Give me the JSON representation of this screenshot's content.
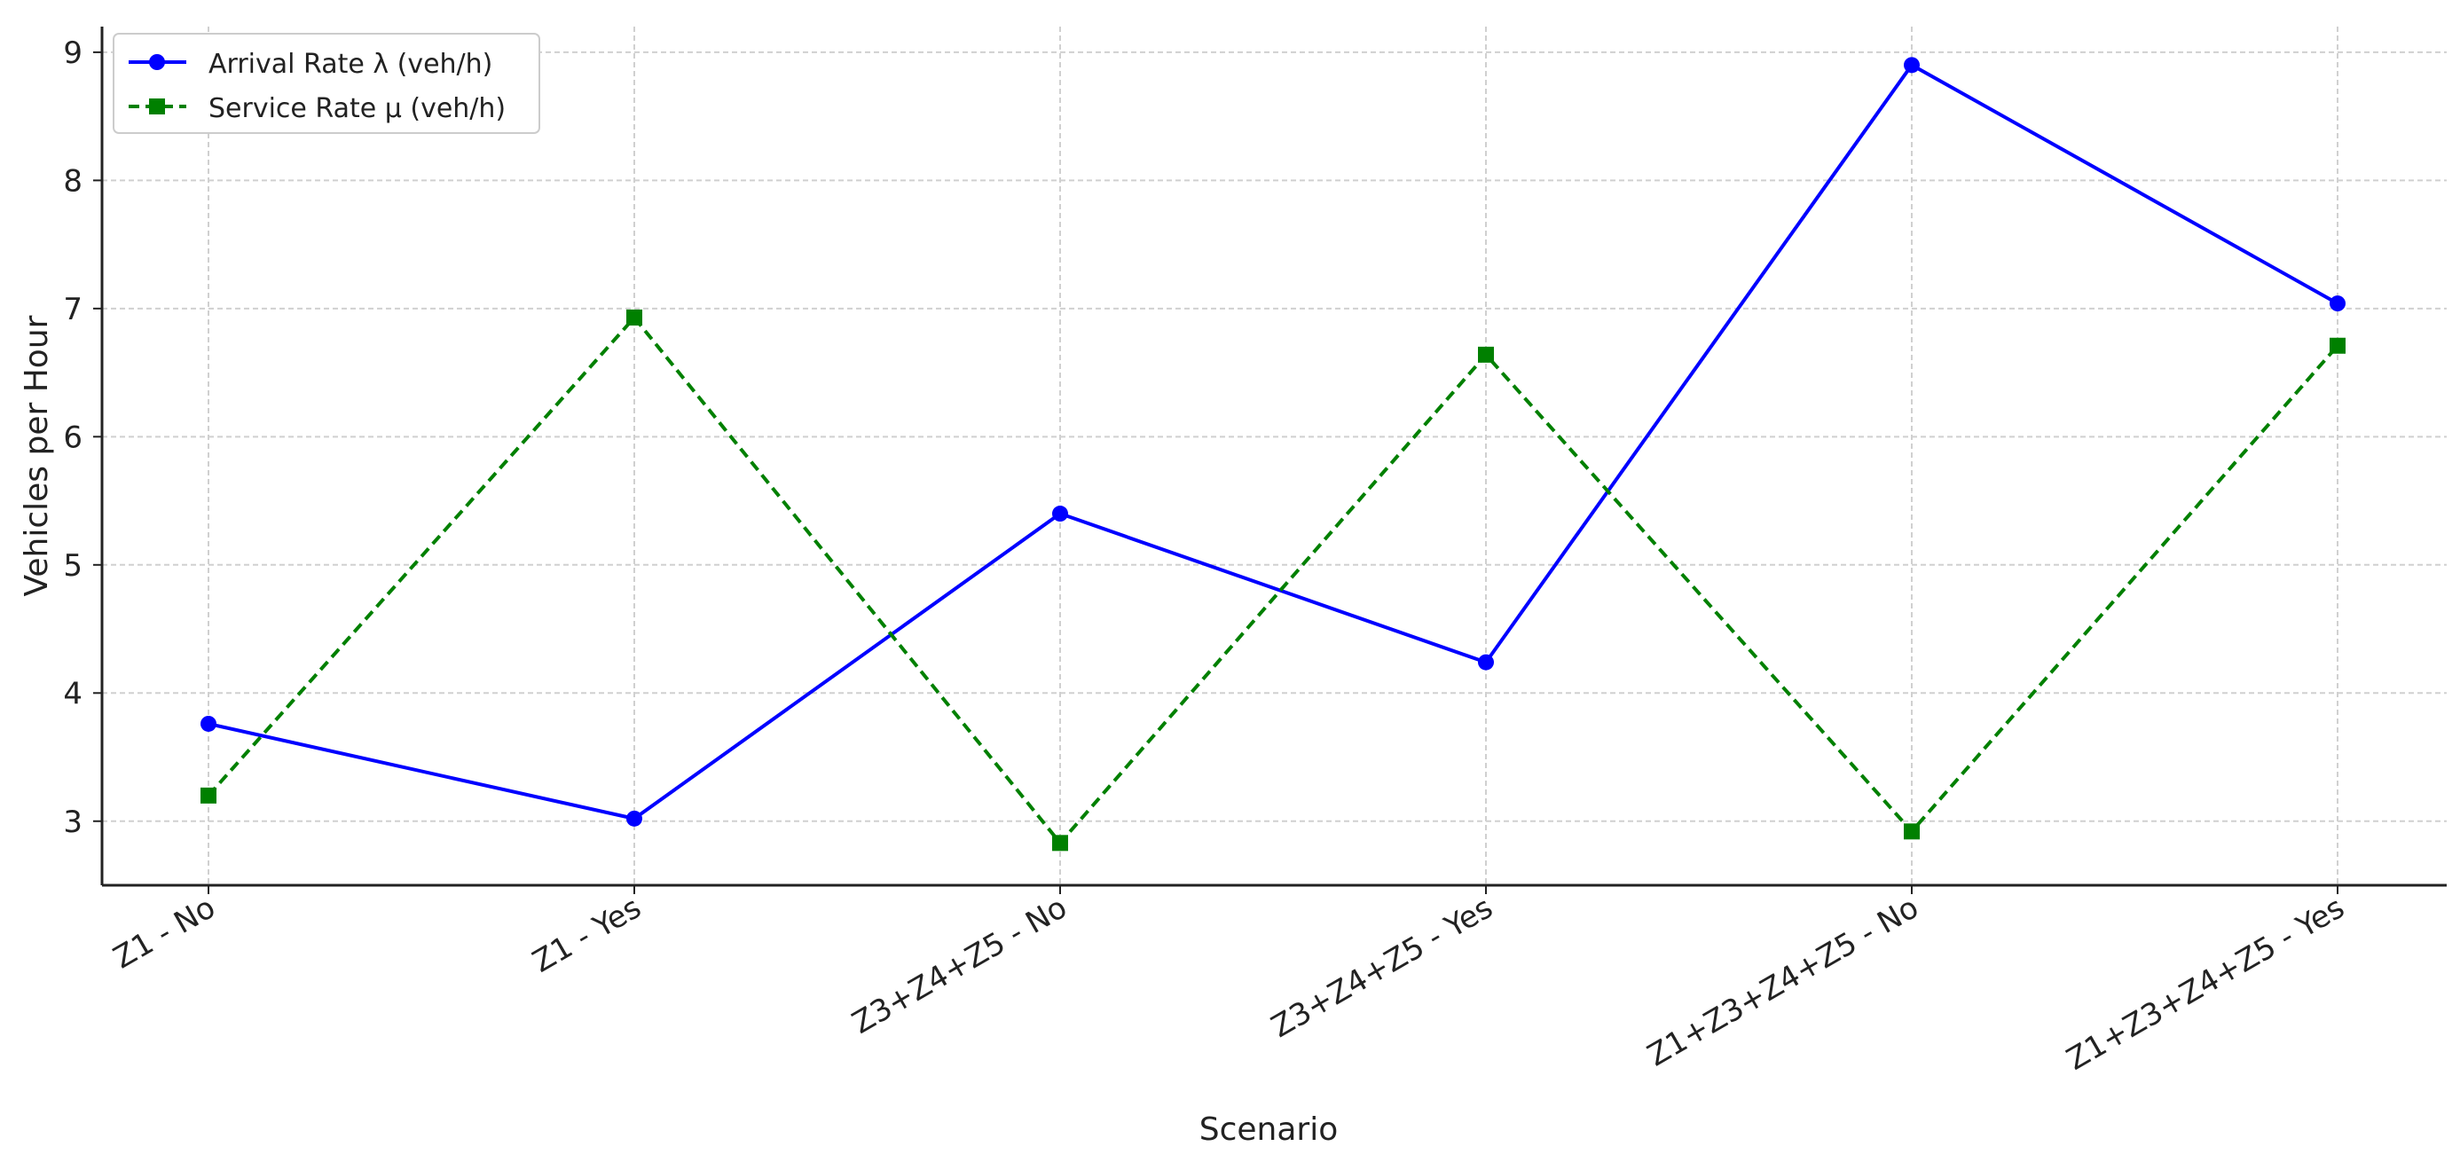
{
  "chart_data": {
    "type": "line",
    "title": "",
    "xlabel": "Scenario",
    "ylabel": "Vehicles per Hour",
    "categories": [
      "Z1 - No",
      "Z1 - Yes",
      "Z3+Z4+Z5 - No",
      "Z3+Z4+Z5 - Yes",
      "Z1+Z3+Z4+Z5 - No",
      "Z1+Z3+Z4+Z5 - Yes"
    ],
    "y_ticks": [
      3,
      4,
      5,
      6,
      7,
      8,
      9
    ],
    "ylim": [
      2.5,
      9.2
    ],
    "grid": true,
    "legend_position": "top-left",
    "series": [
      {
        "name": "Arrival Rate λ (veh/h)",
        "values": [
          3.76,
          3.02,
          5.4,
          4.24,
          8.9,
          7.04
        ],
        "color": "#0000ff",
        "line_style": "solid",
        "marker": "circle"
      },
      {
        "name": "Service Rate μ (veh/h)",
        "values": [
          3.2,
          6.93,
          2.83,
          6.64,
          2.92,
          6.71
        ],
        "color": "#008000",
        "line_style": "dashed",
        "marker": "square"
      }
    ]
  }
}
